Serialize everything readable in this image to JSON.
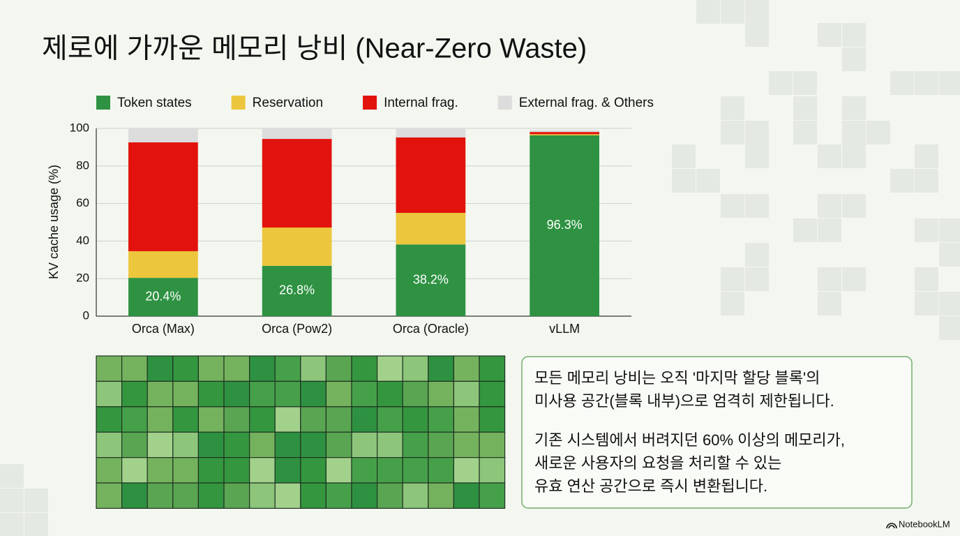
{
  "chart_data": {
    "type": "stacked-bar",
    "title": "제로에 가까운 메모리 낭비 (Near-Zero Waste)",
    "y_label": "KV cache usage (%)",
    "categories": [
      "Orca (Max)",
      "Orca (Pow2)",
      "Orca (Oracle)",
      "vLLM"
    ],
    "series": [
      {
        "name": "Token states",
        "color": "#2e9242",
        "values": [
          20.4,
          26.8,
          38.2,
          96.3
        ],
        "value_labels": [
          "20.4%",
          "26.8%",
          "38.2%",
          "96.3%"
        ]
      },
      {
        "name": "Reservation",
        "color": "#ecc63d",
        "values": [
          14.2,
          20.4,
          16.8,
          0.6
        ]
      },
      {
        "name": "Internal frag.",
        "color": "#e2130c",
        "values": [
          58.0,
          47.2,
          40.2,
          1.2
        ]
      },
      {
        "name": "External frag. & Others",
        "color": "#dcdcdc",
        "values": [
          7.4,
          5.6,
          4.8,
          1.0
        ]
      }
    ],
    "ylim": [
      0,
      100
    ],
    "yticks": [
      0,
      20,
      40,
      60,
      80,
      100
    ],
    "grid": true,
    "legend": "top"
  },
  "callout": {
    "paragraphs": [
      [
        "모든 메모리 낭비는 오직 '마지막 할당 블록'의",
        "미사용 공간(블록 내부)으로 엄격히 제한됩니다."
      ],
      [
        "기존 시스템에서 버려지던 60% 이상의 메모리가,",
        "새로운 사용자의 요청을 처리할 수 있는",
        "유효 연산 공간으로 즉시 변환됩니다."
      ]
    ]
  },
  "branding": "NotebookLM"
}
